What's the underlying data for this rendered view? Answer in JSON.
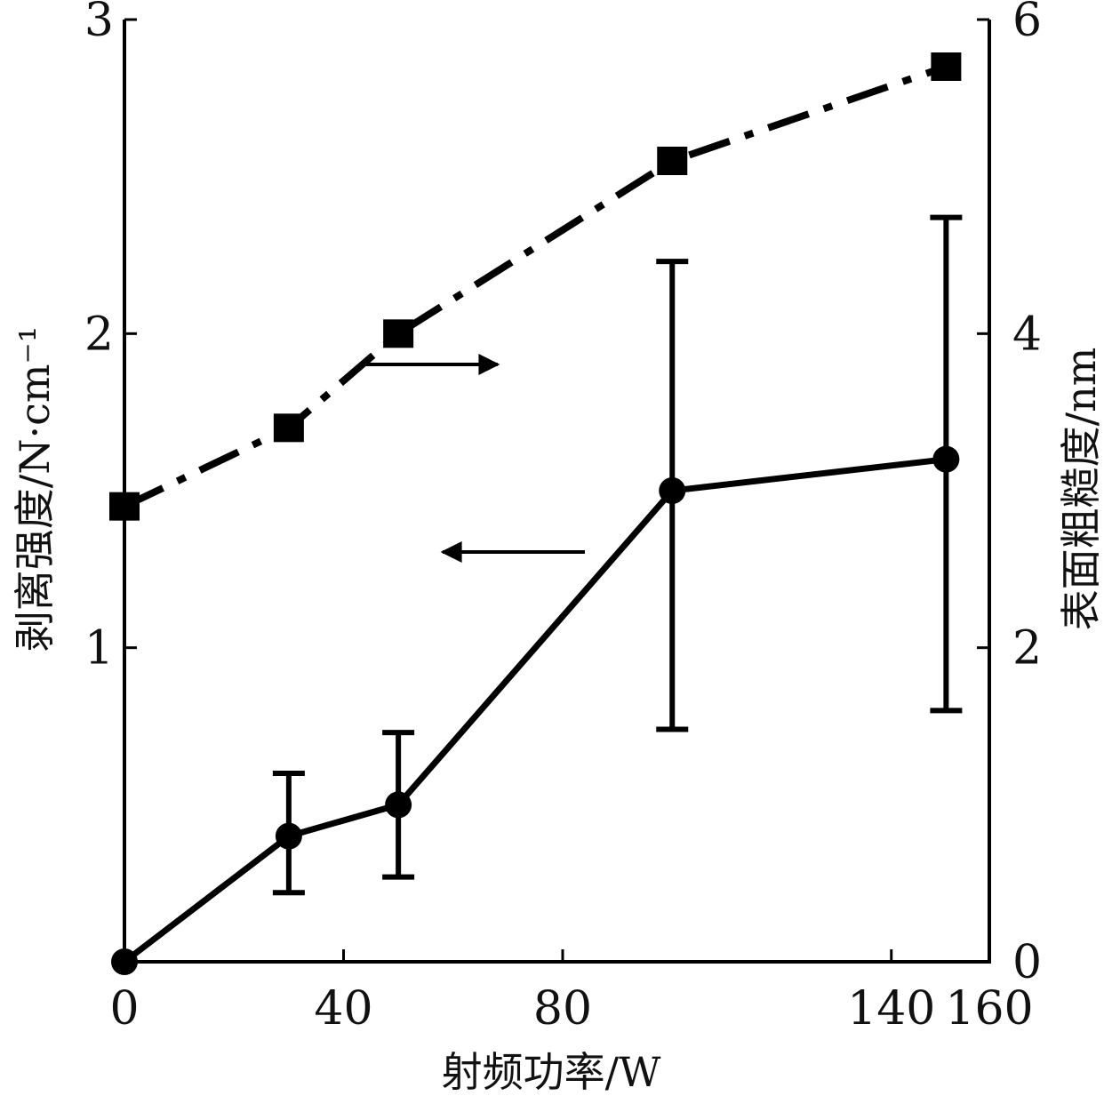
{
  "chart_data": {
    "type": "line",
    "xlabel": "射频功率/W",
    "ylabel_left": "剥离强度/N·cm⁻¹",
    "ylabel_right": "表面粗糙度/nm",
    "x_ticks": [
      "0",
      "40",
      "80",
      "140",
      "160"
    ],
    "y_left_ticks": [
      "1",
      "2",
      "3"
    ],
    "y_right_ticks": [
      "0",
      "2",
      "4",
      "6"
    ],
    "ylim_left": [
      0,
      3
    ],
    "ylim_right": [
      0,
      6
    ],
    "grid": false,
    "series": [
      {
        "axis": "left",
        "marker": "circle",
        "line_style": "solid",
        "x": [
          0,
          30,
          50,
          100,
          150
        ],
        "y": [
          0.0,
          0.4,
          0.5,
          1.5,
          1.6
        ],
        "error_low": [
          null,
          0.22,
          0.27,
          0.74,
          0.8
        ],
        "error_high": [
          null,
          0.6,
          0.73,
          2.23,
          2.37
        ]
      },
      {
        "axis": "right",
        "marker": "square",
        "line_style": "dash-dot",
        "x": [
          0,
          30,
          50,
          100,
          150
        ],
        "y": [
          2.9,
          3.4,
          4.0,
          5.1,
          5.7
        ]
      }
    ],
    "annotations": [
      {
        "name": "arrow-right-axis",
        "direction": "right"
      },
      {
        "name": "arrow-left-axis",
        "direction": "left"
      }
    ]
  }
}
